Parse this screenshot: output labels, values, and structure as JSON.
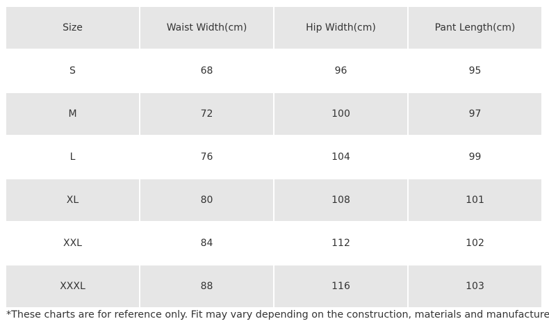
{
  "table": {
    "header": [
      "Size",
      "Waist Width(cm)",
      "Hip Width(cm)",
      "Pant Length(cm)"
    ],
    "rows": [
      [
        "S",
        68,
        96,
        95
      ],
      [
        "M",
        72,
        100,
        97
      ],
      [
        "L",
        76,
        104,
        99
      ],
      [
        "XL",
        80,
        108,
        101
      ],
      [
        "XXL",
        84,
        112,
        102
      ],
      [
        "XXXL",
        88,
        116,
        103
      ]
    ]
  },
  "footnote": "*These charts are for reference only. Fit may vary depending on the construction, materials and manufacturer."
}
